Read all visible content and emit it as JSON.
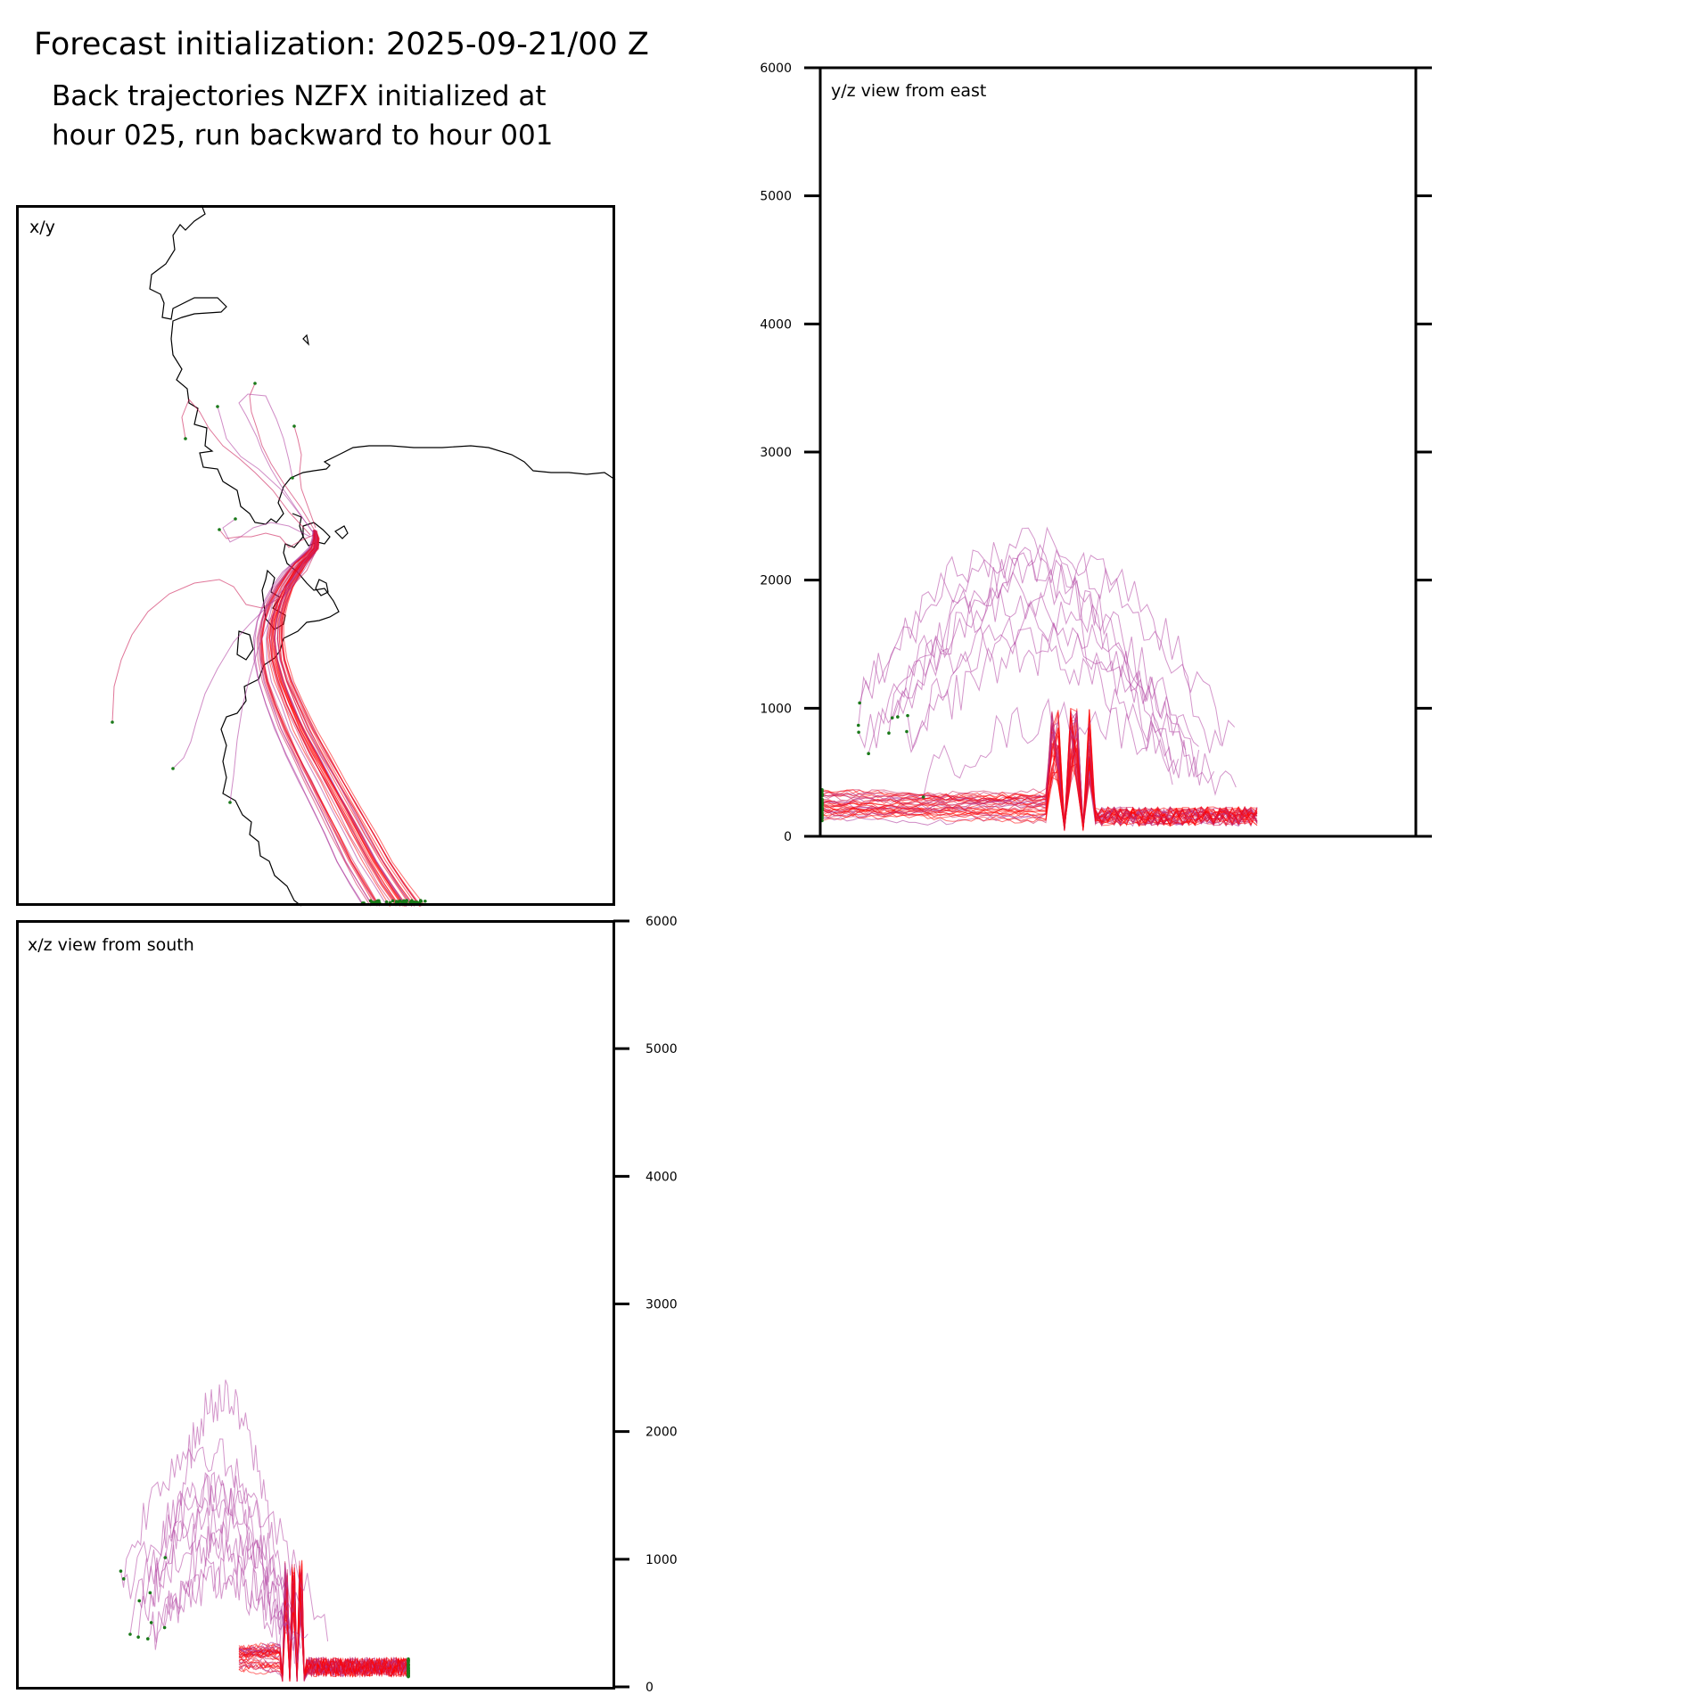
{
  "header": {
    "title": "Forecast initialization: 2025-09-21/00 Z",
    "subtitle_line1": "Back trajectories NZFX initialized at",
    "subtitle_line2": "hour 025, run backward to hour 001"
  },
  "colors": {
    "trajectory_dense": "#ff0000",
    "trajectory_mid": "#cc1a55",
    "trajectory_light": "#b040a0",
    "endpoint": "#1a7a1a",
    "coastline": "#000000"
  },
  "chart_data": [
    {
      "type": "line",
      "panel": "x/y",
      "title": "x/y",
      "description_of_content": "plan-view map of back trajectories with coastline",
      "legend": "none",
      "grid": false
    },
    {
      "type": "line",
      "panel": "y/z",
      "title": "y/z view from east",
      "ylim": [
        0,
        6000
      ],
      "yticks": [
        0,
        1000,
        2000,
        3000,
        4000,
        5000,
        6000
      ],
      "tick_side": "left",
      "grid": false
    },
    {
      "type": "line",
      "panel": "x/z",
      "title": "x/z view from south",
      "ylim": [
        0,
        6000
      ],
      "yticks": [
        0,
        1000,
        2000,
        3000,
        4000,
        5000,
        6000
      ],
      "tick_side": "right",
      "grid": false
    }
  ]
}
